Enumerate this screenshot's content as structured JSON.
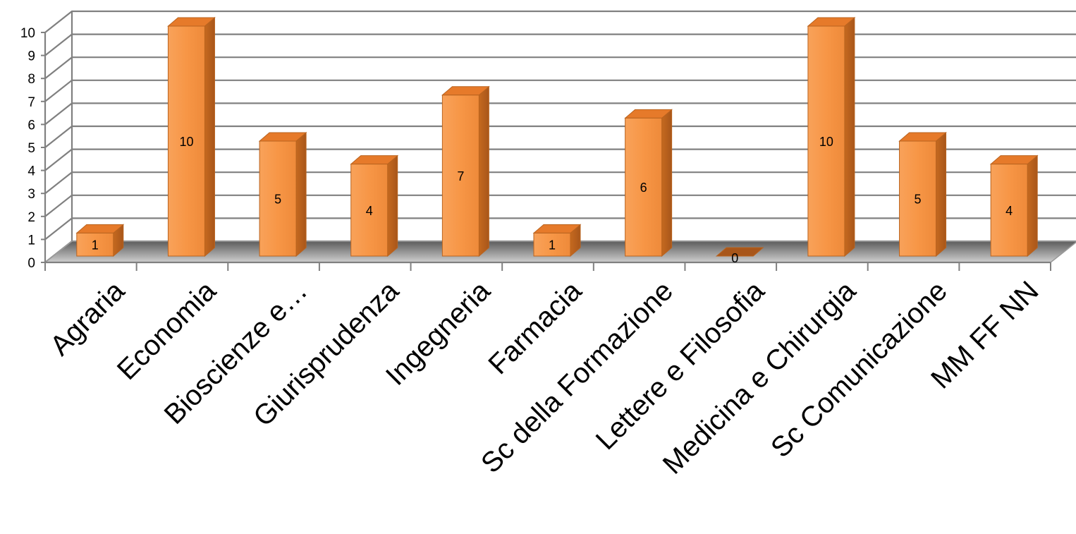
{
  "chart_data": {
    "type": "bar",
    "categories": [
      "Agraria",
      "Economia",
      "Bioscienze e…",
      "Giurisprudenza",
      "Ingegneria",
      "Farmacia",
      "Sc della Formazione",
      "Lettere e Filosofia",
      "Medicina e Chirurgia",
      "Sc Comunicazione",
      "MM FF NN"
    ],
    "values": [
      1,
      10,
      5,
      4,
      7,
      1,
      6,
      0,
      10,
      5,
      4
    ],
    "data_labels": [
      "1",
      "10",
      "5",
      "4",
      "7",
      "1",
      "6",
      "0",
      "10",
      "5",
      "4"
    ],
    "yticks": [
      "0",
      "1",
      "2",
      "3",
      "4",
      "5",
      "6",
      "7",
      "8",
      "9",
      "10"
    ],
    "ylim": [
      0,
      10
    ],
    "grid": true,
    "style": "3d-column",
    "colors": {
      "bar_front": "#F79646",
      "bar_side": "#C0651F",
      "bar_top": "#E67A2A",
      "bar_outline": "#B9631F",
      "grid": "#808080",
      "floor_shadow": "#6E6E6E"
    }
  }
}
